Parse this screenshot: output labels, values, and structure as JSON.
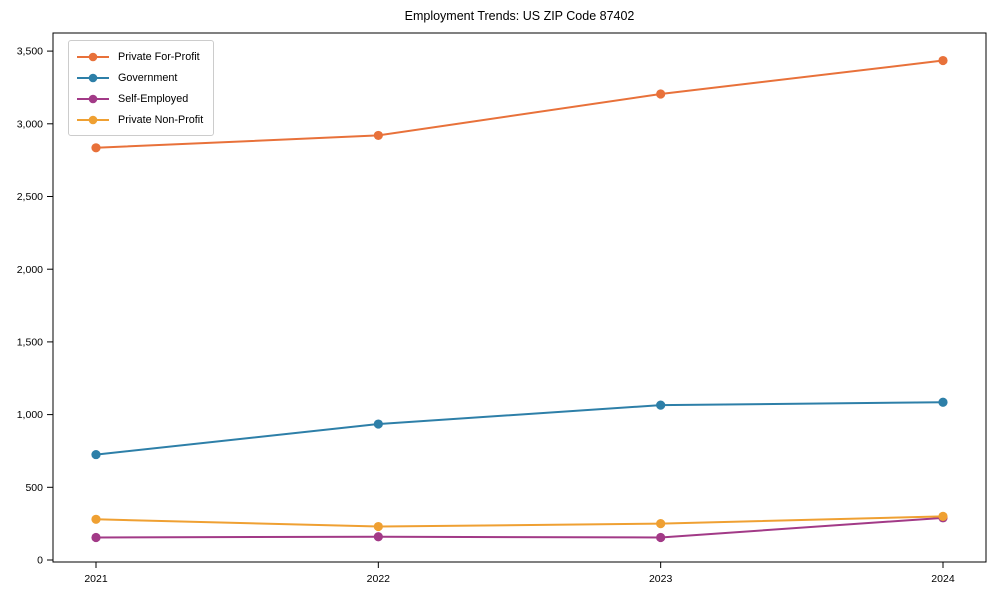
{
  "title": "Employment Trends: US ZIP Code 87402",
  "chart_data": {
    "type": "line",
    "title": "Employment Trends: US ZIP Code 87402",
    "categories": [
      "2021",
      "2022",
      "2023",
      "2024"
    ],
    "series": [
      {
        "name": "Private For-Profit",
        "color": "#e8713a",
        "values": [
          2835,
          2920,
          3205,
          3435
        ]
      },
      {
        "name": "Government",
        "color": "#2d7fa8",
        "values": [
          725,
          935,
          1065,
          1085
        ]
      },
      {
        "name": "Self-Employed",
        "color": "#a23a87",
        "values": [
          155,
          160,
          155,
          290
        ]
      },
      {
        "name": "Private Non-Profit",
        "color": "#efa032",
        "values": [
          280,
          230,
          250,
          300
        ]
      }
    ],
    "xlabel": "",
    "ylabel": "",
    "ylim": [
      0,
      3500
    ],
    "yticks": [
      0,
      500,
      1000,
      1500,
      2000,
      2500,
      3000,
      3500
    ],
    "y_tick_labels": [
      "0",
      "500",
      "1,000",
      "1,500",
      "2,000",
      "2,500",
      "3,000",
      "3,500"
    ],
    "grid": false,
    "legend_position": "upper left",
    "spine_color": "#000000",
    "tick_color": "#000000"
  }
}
